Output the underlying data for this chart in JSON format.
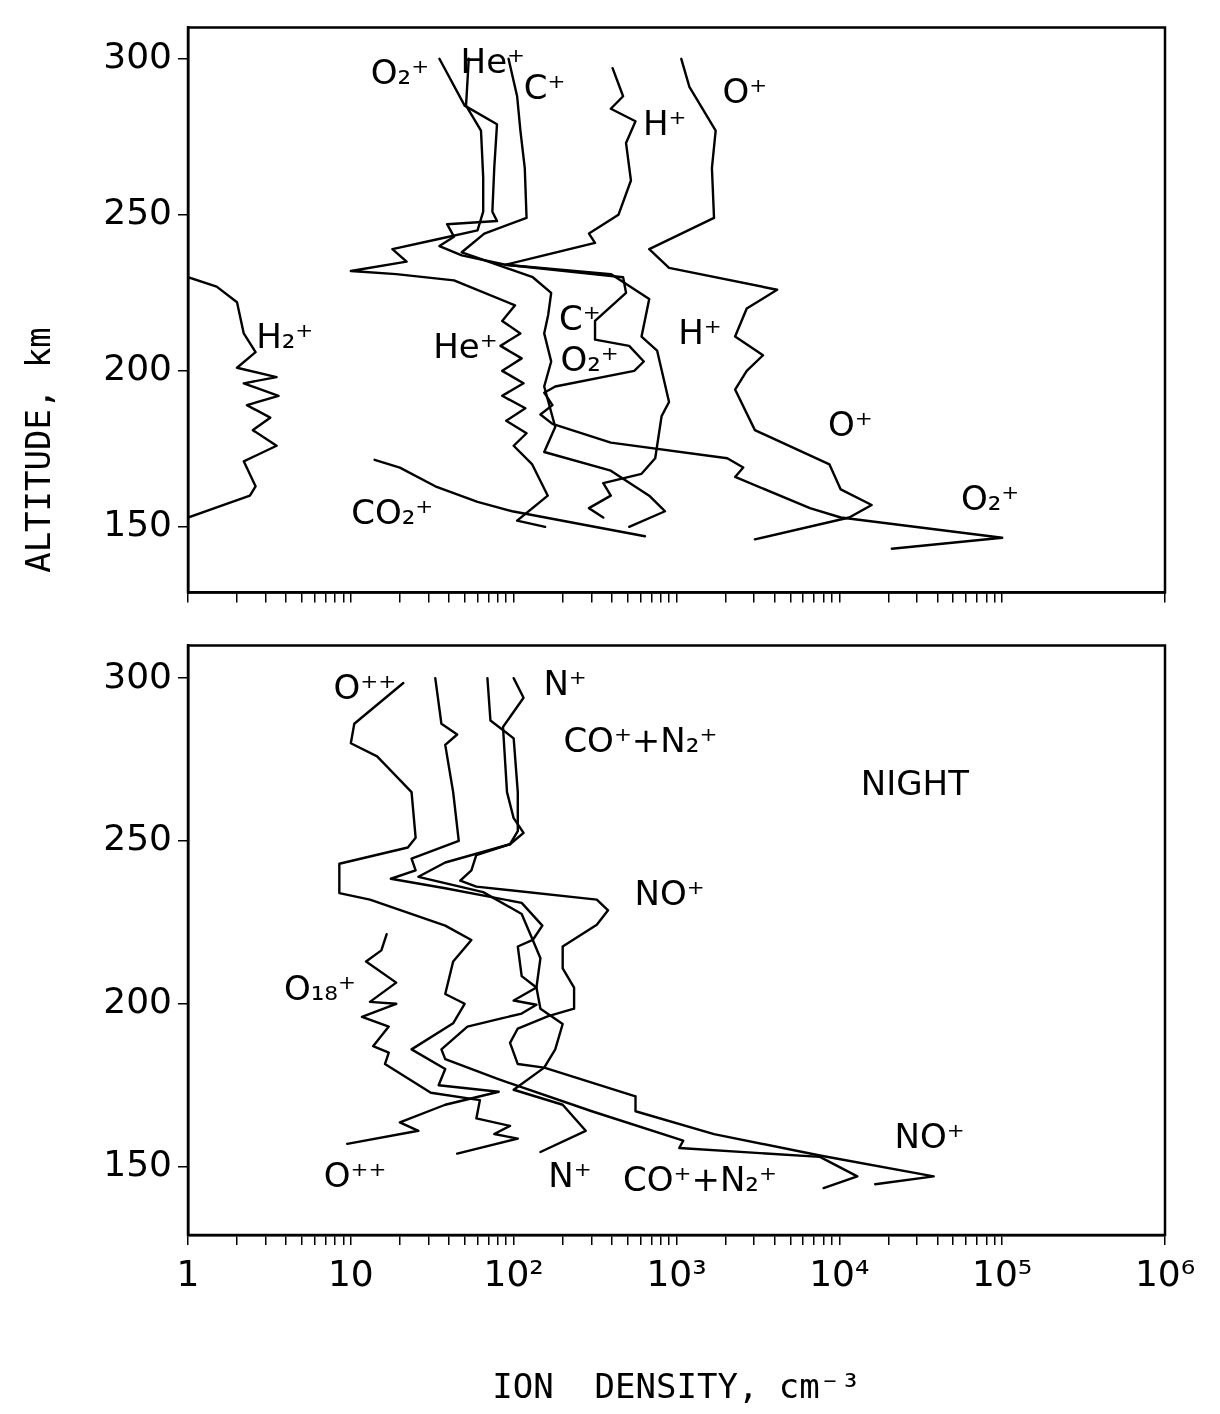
{
  "chart_data": [
    {
      "type": "line",
      "ylabel": "ALTITUDE, km",
      "xlim": [
        1,
        1000000
      ],
      "ylim": [
        129,
        310
      ],
      "xticks": [
        {
          "value": 1,
          "label": null
        },
        {
          "value": 2,
          "label": null
        },
        {
          "value": 3,
          "label": null
        },
        {
          "value": 4,
          "label": null
        },
        {
          "value": 5,
          "label": null
        },
        {
          "value": 6,
          "label": null
        },
        {
          "value": 7,
          "label": null
        },
        {
          "value": 8,
          "label": null
        },
        {
          "value": 9,
          "label": null
        },
        {
          "value": 10,
          "label": null
        },
        {
          "value": 20,
          "label": null
        },
        {
          "value": 30,
          "label": null
        },
        {
          "value": 40,
          "label": null
        },
        {
          "value": 50,
          "label": null
        },
        {
          "value": 60,
          "label": null
        },
        {
          "value": 70,
          "label": null
        },
        {
          "value": 80,
          "label": null
        },
        {
          "value": 90,
          "label": null
        },
        {
          "value": 100,
          "label": null
        },
        {
          "value": 200,
          "label": null
        },
        {
          "value": 300,
          "label": null
        },
        {
          "value": 400,
          "label": null
        },
        {
          "value": 500,
          "label": null
        },
        {
          "value": 600,
          "label": null
        },
        {
          "value": 700,
          "label": null
        },
        {
          "value": 800,
          "label": null
        },
        {
          "value": 900,
          "label": null
        },
        {
          "value": 1000,
          "label": null
        },
        {
          "value": 2000,
          "label": null
        },
        {
          "value": 3000,
          "label": null
        },
        {
          "value": 4000,
          "label": null
        },
        {
          "value": 5000,
          "label": null
        },
        {
          "value": 6000,
          "label": null
        },
        {
          "value": 7000,
          "label": null
        },
        {
          "value": 8000,
          "label": null
        },
        {
          "value": 9000,
          "label": null
        },
        {
          "value": 10000,
          "label": null
        },
        {
          "value": 20000,
          "label": null
        },
        {
          "value": 30000,
          "label": null
        },
        {
          "value": 40000,
          "label": null
        },
        {
          "value": 50000,
          "label": null
        },
        {
          "value": 60000,
          "label": null
        },
        {
          "value": 70000,
          "label": null
        },
        {
          "value": 80000,
          "label": null
        },
        {
          "value": 90000,
          "label": null
        },
        {
          "value": 100000,
          "label": null
        },
        {
          "value": 1000000,
          "label": null
        }
      ],
      "yticks": [
        150,
        200,
        250,
        300
      ],
      "log": "x",
      "grid": false,
      "legend": false,
      "marker": "none",
      "tick_labels": "y",
      "series": [
        {
          "color": "#000000",
          "x": [
            1,
            1.5,
            2.0,
            2.2,
            2.6,
            2.0,
            3.5,
            2.2,
            3.6,
            2.3,
            3.2,
            2.5,
            3.5,
            2.2,
            2.6,
            2.4,
            1
          ],
          "values": [
            230,
            227,
            222,
            212,
            206,
            201,
            198,
            196,
            192,
            189,
            185,
            181,
            176,
            171,
            163,
            160,
            153
          ]
        },
        {
          "color": "#000000",
          "x": [
            14,
            20,
            33,
            60,
            98,
            250,
            640
          ],
          "values": [
            171.5,
            169,
            163,
            158,
            155,
            151,
            147
          ]
        },
        {
          "color": "#000000",
          "x": [
            53,
            51,
            63,
            65,
            65,
            60,
            33,
            18,
            22,
            10,
            19,
            43,
            102,
            85,
            110,
            83,
            112,
            85,
            115,
            85,
            118,
            90,
            120,
            100,
            130,
            162,
            105,
            156
          ],
          "values": [
            300,
            285,
            277,
            262,
            251,
            245,
            242,
            239,
            235,
            232,
            231,
            229,
            221,
            216,
            212,
            208,
            204,
            200,
            196,
            192,
            188,
            184,
            180,
            176,
            170,
            160,
            152,
            150
          ]
        },
        {
          "color": "#000000",
          "x": [
            35,
            50,
            79,
            76,
            74,
            79,
            39,
            43,
            35,
            48,
            89,
            470,
            490,
            316,
            316,
            512,
            630,
            550,
            180,
            154,
            173,
            146,
            173,
            395,
            2050,
            2570,
            2290,
            6600,
            10200,
            100000,
            21000
          ],
          "values": [
            300,
            285,
            279,
            265,
            251,
            248,
            247,
            243,
            240,
            237,
            234,
            230,
            225,
            216,
            210,
            208,
            203,
            200,
            195,
            193,
            189,
            186,
            183,
            177,
            172,
            169,
            166,
            156,
            153,
            146.5,
            143
          ]
        },
        {
          "color": "#000000",
          "x": [
            93,
            105,
            110,
            117,
            120,
            66,
            48,
            131,
            170,
            163,
            154,
            170,
            154,
            180,
            154,
            395,
            680,
            850,
            512
          ],
          "values": [
            300,
            288,
            277,
            265,
            249,
            244,
            238,
            230,
            225,
            218,
            212,
            203,
            195,
            182,
            174,
            168,
            160,
            155,
            150
          ]
        },
        {
          "color": "#000000",
          "x": [
            405,
            470,
            395,
            560,
            490,
            525,
            440,
            290,
            316,
            89,
            395,
            680,
            610,
            760,
            900,
            810,
            740,
            610,
            355,
            395,
            290,
            355
          ],
          "values": [
            297,
            288,
            284,
            280,
            273,
            261,
            250,
            244,
            241,
            234,
            231,
            223,
            211,
            206.5,
            190,
            185.5,
            172,
            167,
            164,
            160,
            156,
            153
          ]
        },
        {
          "color": "#000000",
          "x": [
            1070,
            1200,
            1740,
            1650,
            1700,
            680,
            900,
            4150,
            2700,
            2290,
            3400,
            2700,
            2290,
            3030,
            8700,
            10200,
            15800,
            11500,
            3030
          ],
          "values": [
            300,
            291,
            277,
            265,
            249,
            239,
            233,
            226,
            220,
            211,
            205,
            200,
            194,
            181,
            170,
            162,
            157,
            153,
            146
          ]
        }
      ],
      "annotations": [
        "O₂⁺",
        "He⁺",
        "C⁺",
        "H⁺",
        "O⁺",
        "H₂⁺",
        "He⁺",
        "C⁺",
        "O₂⁺",
        "H⁺",
        "O⁺",
        "CO₂⁺",
        "O₂⁺"
      ]
    },
    {
      "type": "line",
      "xlabel": "ION  DENSITY, cm⁻³",
      "xlim": [
        1,
        1000000
      ],
      "ylim": [
        129,
        310
      ],
      "xticks": [
        {
          "value": 1,
          "label": "1"
        },
        {
          "value": 2,
          "label": null
        },
        {
          "value": 3,
          "label": null
        },
        {
          "value": 4,
          "label": null
        },
        {
          "value": 5,
          "label": null
        },
        {
          "value": 6,
          "label": null
        },
        {
          "value": 7,
          "label": null
        },
        {
          "value": 8,
          "label": null
        },
        {
          "value": 9,
          "label": null
        },
        {
          "value": 10,
          "label": "10"
        },
        {
          "value": 20,
          "label": null
        },
        {
          "value": 30,
          "label": null
        },
        {
          "value": 40,
          "label": null
        },
        {
          "value": 50,
          "label": null
        },
        {
          "value": 60,
          "label": null
        },
        {
          "value": 70,
          "label": null
        },
        {
          "value": 80,
          "label": null
        },
        {
          "value": 90,
          "label": null
        },
        {
          "value": 100,
          "label": "10²"
        },
        {
          "value": 200,
          "label": null
        },
        {
          "value": 300,
          "label": null
        },
        {
          "value": 400,
          "label": null
        },
        {
          "value": 500,
          "label": null
        },
        {
          "value": 600,
          "label": null
        },
        {
          "value": 700,
          "label": null
        },
        {
          "value": 800,
          "label": null
        },
        {
          "value": 900,
          "label": null
        },
        {
          "value": 1000,
          "label": "10³"
        },
        {
          "value": 2000,
          "label": null
        },
        {
          "value": 3000,
          "label": null
        },
        {
          "value": 4000,
          "label": null
        },
        {
          "value": 5000,
          "label": null
        },
        {
          "value": 6000,
          "label": null
        },
        {
          "value": 7000,
          "label": null
        },
        {
          "value": 8000,
          "label": null
        },
        {
          "value": 9000,
          "label": null
        },
        {
          "value": 10000,
          "label": "10⁴"
        },
        {
          "value": 20000,
          "label": null
        },
        {
          "value": 30000,
          "label": null
        },
        {
          "value": 40000,
          "label": null
        },
        {
          "value": 50000,
          "label": null
        },
        {
          "value": 60000,
          "label": null
        },
        {
          "value": 70000,
          "label": null
        },
        {
          "value": 80000,
          "label": null
        },
        {
          "value": 90000,
          "label": null
        },
        {
          "value": 100000,
          "label": "10⁵"
        },
        {
          "value": 1000000,
          "label": "10⁶"
        }
      ],
      "yticks": [
        150,
        200,
        250,
        300
      ],
      "log": "x",
      "grid": false,
      "legend": false,
      "marker": "none",
      "series": [
        {
          "color": "#000000",
          "x": [
            21,
            10.5,
            10,
            14.5,
            23.6,
            25,
            22.4,
            8.5,
            8.5,
            13.1,
            38,
            55,
            42.5,
            38,
            50,
            42.5,
            23.6,
            38,
            34.6,
            81,
            38,
            20,
            26,
            9.5
          ],
          "values": [
            298.5,
            286,
            280,
            276,
            265,
            251,
            248,
            243,
            234,
            232,
            224,
            219.6,
            213,
            203,
            200,
            194,
            186,
            180,
            175,
            173,
            169,
            163.6,
            161,
            157
          ]
        },
        {
          "color": "#000000",
          "x": [
            33,
            36,
            45,
            38,
            42.5,
            46,
            23.6,
            25,
            17.6,
            38,
            112,
            150,
            131,
            106,
            112,
            138,
            100,
            138,
            112,
            52,
            36,
            38,
            79,
            302,
            1100,
            1040,
            7600,
            12900,
            8000
          ],
          "values": [
            300,
            286,
            282.7,
            279.5,
            265,
            250,
            244.6,
            241,
            238.4,
            235.5,
            231,
            224,
            219.6,
            217.6,
            208.5,
            205,
            201,
            199.7,
            197,
            193,
            186,
            183,
            177,
            167,
            158,
            155.7,
            153,
            147,
            143.4
          ]
        },
        {
          "color": "#000000",
          "x": [
            69,
            72,
            100,
            106,
            106,
            95,
            59,
            55,
            47,
            59,
            324,
            380,
            324,
            200,
            200,
            235,
            235,
            163,
            106,
            95,
            106,
            154,
            560,
            560,
            1700,
            7600,
            38000,
            16600
          ],
          "values": [
            300,
            287,
            281.5,
            265,
            253,
            249,
            245.7,
            241,
            237.8,
            236,
            232,
            228.7,
            224.3,
            217.6,
            210.9,
            205,
            198.5,
            196.2,
            192.4,
            188,
            181.5,
            180.4,
            171.6,
            167,
            160,
            153.4,
            147,
            144.6
          ]
        },
        {
          "color": "#000000",
          "x": [
            100,
            115,
            86,
            91,
            100,
            115,
            95,
            38,
            26,
            65,
            112,
            131,
            146,
            138,
            146,
            200,
            180,
            154,
            100,
            200,
            277,
            146
          ],
          "values": [
            300,
            294,
            285,
            265,
            257,
            252.5,
            249,
            243.4,
            239,
            234.3,
            227.6,
            219.6,
            214,
            205,
            198.5,
            193.8,
            186,
            180.4,
            173.6,
            169,
            161,
            154.5
          ]
        },
        {
          "color": "#000000",
          "x": [
            16.6,
            15.4,
            12.4,
            19,
            13.1,
            19,
            11.7,
            17.1,
            13.7,
            17.1,
            16.2,
            31,
            62,
            59,
            95,
            76,
            106,
            45
          ],
          "values": [
            221.4,
            216.4,
            213,
            206.5,
            200.6,
            200,
            196,
            193,
            187,
            185,
            181.5,
            172.7,
            170.4,
            164.8,
            162.5,
            160,
            158.6,
            154
          ]
        }
      ],
      "annotations": [
        "O⁺⁺",
        "N⁺",
        "CO⁺+N₂⁺",
        "NIGHT",
        "NO⁺",
        "O₁₈⁺",
        "O⁺⁺",
        "N⁺",
        "CO⁺+N₂⁺",
        "NO⁺"
      ]
    }
  ]
}
